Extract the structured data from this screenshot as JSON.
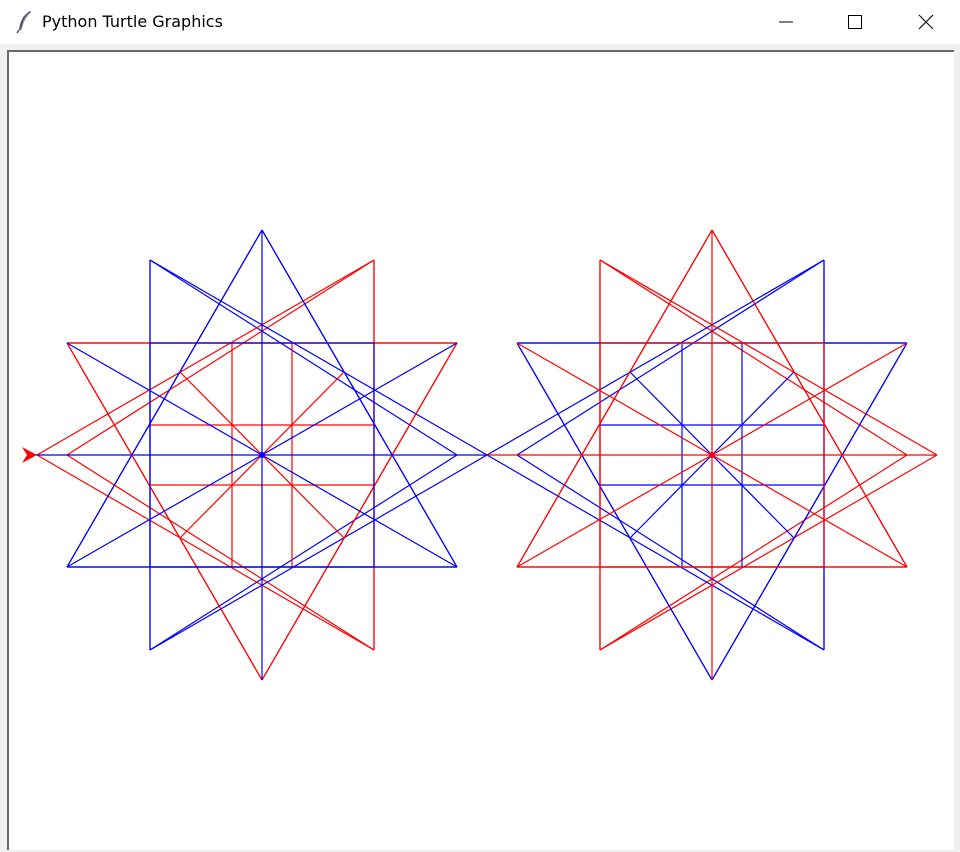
{
  "window": {
    "title": "Python Turtle Graphics",
    "icon": "feather-icon"
  },
  "controls": {
    "minimize_icon": "minimize-icon",
    "maximize_icon": "maximize-icon",
    "close_icon": "close-icon"
  },
  "canvas": {
    "background": "#ffffff",
    "colors": {
      "primary": "#0000ff",
      "secondary": "#ff0000"
    },
    "turtle_icon": "turtle-arrow-icon"
  }
}
